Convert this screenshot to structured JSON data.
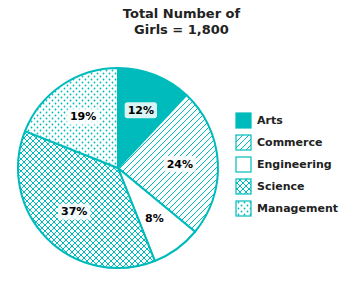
{
  "chart_data": {
    "type": "pie",
    "title": "Total Number of\nGirls = 1,800",
    "categories": [
      "Arts",
      "Commerce",
      "Engineering",
      "Science",
      "Management"
    ],
    "values": [
      12,
      24,
      8,
      37,
      19
    ],
    "value_labels": [
      "12%",
      "24%",
      "8%",
      "37%",
      "19%"
    ],
    "data_labels": true,
    "colors": [
      "#00BBBB",
      "#ffffff",
      "#ffffff",
      "#ffffff",
      "#ffffff"
    ],
    "color": "#00BBBB",
    "legend": "right"
  }
}
